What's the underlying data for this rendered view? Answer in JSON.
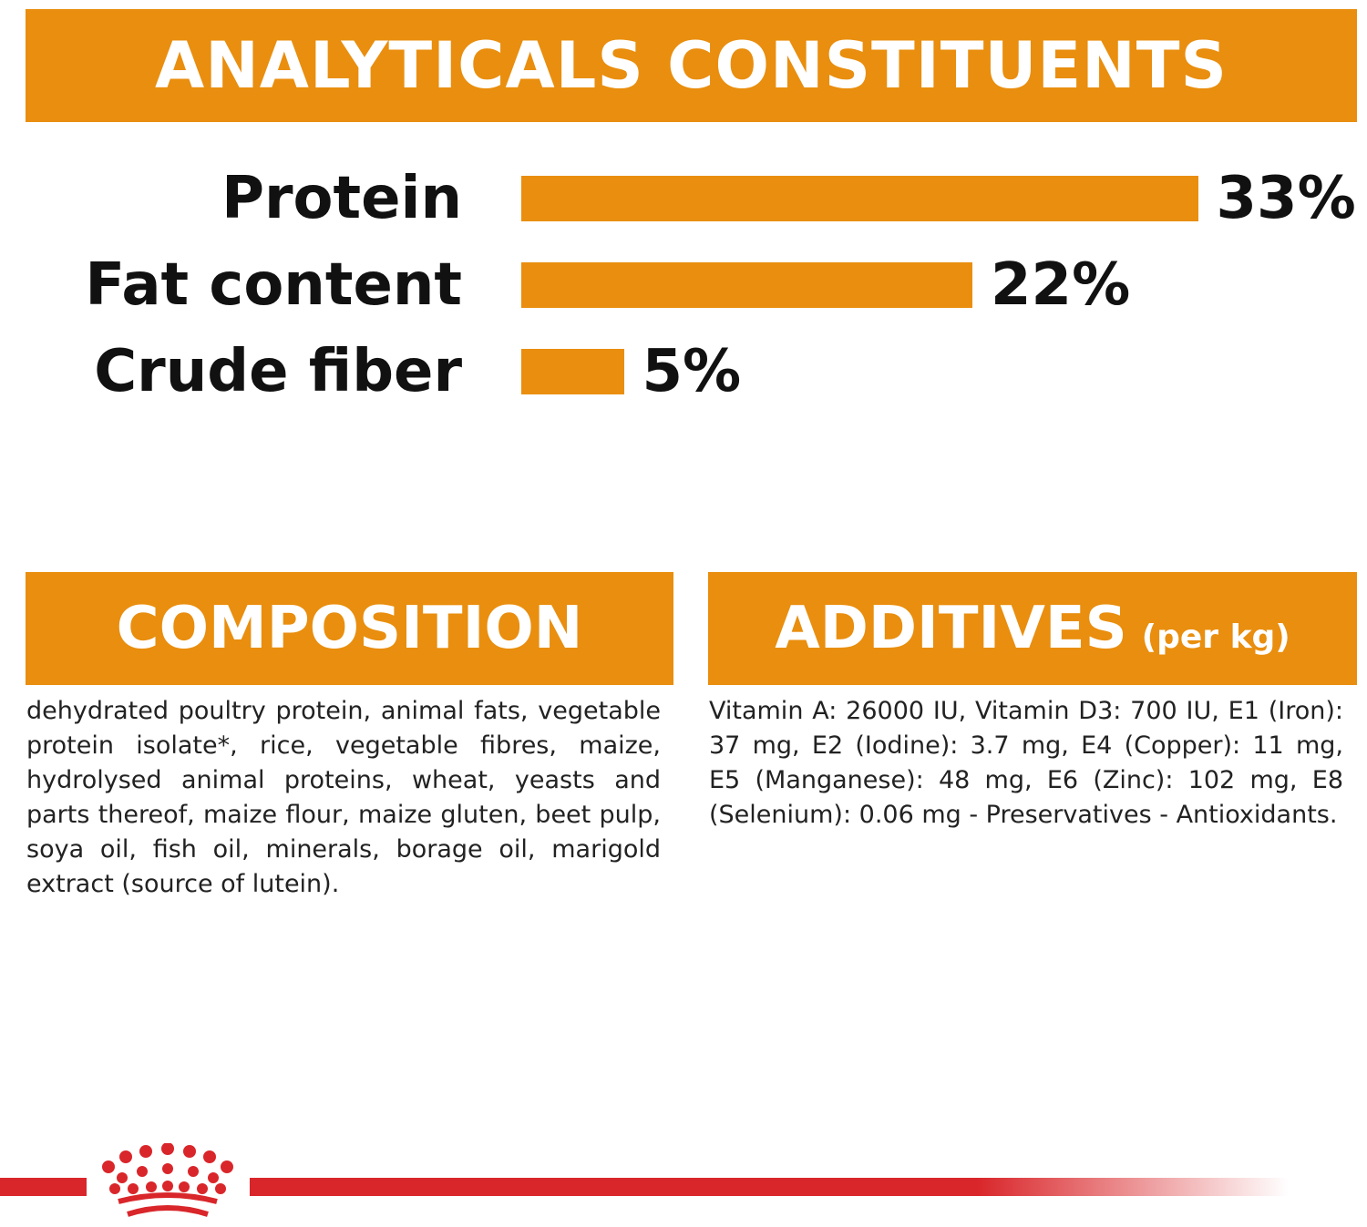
{
  "headers": {
    "analytical": "ANALYTICALS CONSTITUENTS",
    "composition": "COMPOSITION",
    "additives": "ADDITIVES",
    "additives_sub": "(per kg)"
  },
  "chart_data": {
    "type": "bar",
    "orientation": "horizontal",
    "categories": [
      "Protein",
      "Fat content",
      "Crude fiber"
    ],
    "values": [
      33,
      22,
      5
    ],
    "value_labels": [
      "33%",
      "22%",
      "5%"
    ],
    "unit": "%",
    "grid": false,
    "bar_color": "#e98e0e"
  },
  "composition_text": "dehydrated poultry protein, animal fats, vegetable protein isolate*, rice, vegetable fibres, maize, hydrolysed animal proteins, wheat, yeasts and parts thereof, maize flour, maize gluten, beet pulp, soya oil, fish oil, minerals, borage oil, marigold extract (source of lutein).",
  "additives_text": "Vitamin A: 26000 IU, Vitamin D3: 700 IU, E1 (Iron): 37 mg, E2 (Iodine): 3.7 mg, E4 (Copper): 11 mg, E5 (Manganese): 48 mg, E6 (Zinc): 102 mg, E8 (Selenium): 0.06 mg - Preservatives - Antioxidants.",
  "colors": {
    "accent": "#e98e0e",
    "brand_red": "#d9262a"
  },
  "icons": {
    "logo": "royal-crown-icon"
  }
}
